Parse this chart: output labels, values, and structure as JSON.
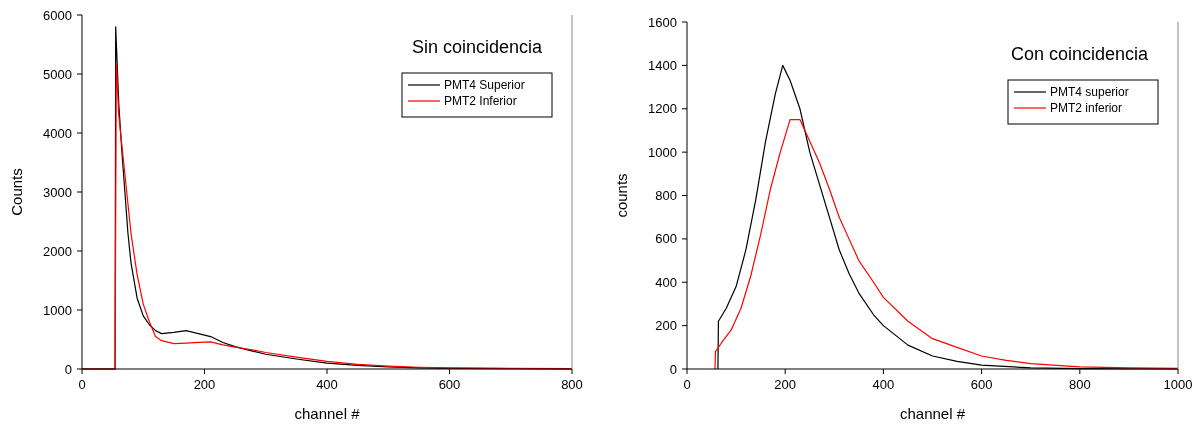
{
  "chart_data": [
    {
      "type": "line",
      "title": "Sin coincidencia",
      "xlabel": "channel #",
      "ylabel": "Counts",
      "xlim": [
        0,
        800
      ],
      "xticks": [
        0,
        200,
        400,
        600,
        800
      ],
      "ylim": [
        0,
        6000
      ],
      "yticks": [
        0,
        1000,
        2000,
        3000,
        4000,
        5000,
        6000
      ],
      "legend": "top right",
      "grid": false,
      "series": [
        {
          "name": "PMT4 Superior",
          "color": "#000000",
          "x": [
            0,
            54,
            55,
            60,
            65,
            70,
            75,
            80,
            90,
            100,
            110,
            120,
            130,
            150,
            170,
            190,
            210,
            230,
            250,
            280,
            300,
            350,
            400,
            450,
            500,
            550,
            600,
            700,
            800
          ],
          "values": [
            0,
            0,
            5800,
            4500,
            3700,
            3000,
            2300,
            1800,
            1200,
            900,
            750,
            650,
            600,
            620,
            650,
            600,
            550,
            450,
            380,
            300,
            250,
            170,
            100,
            60,
            35,
            20,
            12,
            5,
            3
          ]
        },
        {
          "name": "PMT2 Inferior",
          "color": "#ff0000",
          "x": [
            0,
            54,
            56,
            60,
            65,
            70,
            75,
            80,
            90,
            100,
            110,
            120,
            130,
            150,
            170,
            190,
            210,
            230,
            250,
            280,
            300,
            350,
            400,
            450,
            500,
            550,
            600,
            700,
            800
          ],
          "values": [
            0,
            0,
            5200,
            4300,
            3800,
            3300,
            2800,
            2300,
            1600,
            1100,
            800,
            550,
            480,
            430,
            440,
            450,
            460,
            410,
            370,
            320,
            280,
            200,
            130,
            80,
            50,
            30,
            20,
            10,
            5
          ]
        }
      ]
    },
    {
      "type": "line",
      "title": "Con coincidencia",
      "xlabel": "channel #",
      "ylabel": "counts",
      "xlim": [
        0,
        1000
      ],
      "xticks": [
        0,
        200,
        400,
        600,
        800,
        1000
      ],
      "ylim": [
        0,
        1600
      ],
      "yticks": [
        0,
        200,
        400,
        600,
        800,
        1000,
        1200,
        1400,
        1600
      ],
      "legend": "top right",
      "grid": false,
      "series": [
        {
          "name": "PMT4 superior",
          "color": "#000000",
          "x": [
            63,
            64,
            80,
            100,
            120,
            140,
            160,
            180,
            195,
            210,
            230,
            250,
            270,
            290,
            310,
            330,
            350,
            380,
            400,
            450,
            500,
            550,
            600,
            700,
            800,
            1000
          ],
          "values": [
            0,
            220,
            280,
            380,
            550,
            780,
            1050,
            1270,
            1400,
            1330,
            1200,
            1000,
            850,
            700,
            550,
            440,
            350,
            250,
            200,
            110,
            60,
            35,
            18,
            5,
            2,
            0
          ]
        },
        {
          "name": "PMT2 inferior",
          "color": "#ff0000",
          "x": [
            57,
            58,
            70,
            90,
            110,
            130,
            150,
            170,
            190,
            210,
            230,
            250,
            270,
            290,
            310,
            330,
            350,
            380,
            400,
            450,
            500,
            550,
            600,
            650,
            700,
            800,
            900,
            1000
          ],
          "values": [
            0,
            80,
            120,
            180,
            280,
            430,
            620,
            830,
            1000,
            1150,
            1150,
            1050,
            950,
            830,
            700,
            600,
            500,
            400,
            330,
            220,
            140,
            100,
            60,
            40,
            25,
            10,
            5,
            3
          ]
        }
      ]
    }
  ]
}
